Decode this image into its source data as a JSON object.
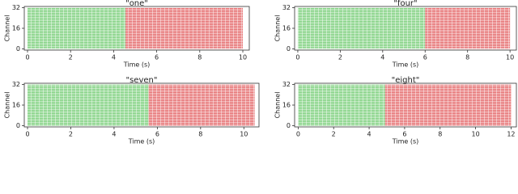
{
  "chart_data": [
    {
      "type": "raster",
      "title": "\"one\"",
      "xlabel": "Time (s)",
      "ylabel": "Channel",
      "xlim": [
        -0.15,
        10.3
      ],
      "xticks": [
        0,
        2,
        4,
        6,
        8,
        10
      ],
      "ylim": [
        -1,
        33
      ],
      "yticks": [
        0,
        16,
        32
      ],
      "series": [
        {
          "color": "#7ccf7c",
          "start": 0,
          "end": 4.55
        },
        {
          "color": "#e56a6c",
          "start": 4.55,
          "end": 10
        }
      ]
    },
    {
      "type": "raster",
      "title": "\"four\"",
      "xlabel": "Time (s)",
      "ylabel": "Channel",
      "xlim": [
        -0.15,
        10.3
      ],
      "xticks": [
        0,
        2,
        4,
        6,
        8,
        10
      ],
      "ylim": [
        -1,
        33
      ],
      "yticks": [
        0,
        16,
        32
      ],
      "series": [
        {
          "color": "#7ccf7c",
          "start": 0,
          "end": 6
        },
        {
          "color": "#e56a6c",
          "start": 6,
          "end": 10
        }
      ]
    },
    {
      "type": "raster",
      "title": "\"seven\"",
      "xlabel": "Time (s)",
      "ylabel": "Channel",
      "xlim": [
        -0.15,
        10.7
      ],
      "xticks": [
        0,
        2,
        4,
        6,
        8,
        10
      ],
      "ylim": [
        -1,
        33
      ],
      "yticks": [
        0,
        16,
        32
      ],
      "series": [
        {
          "color": "#7ccf7c",
          "start": 0,
          "end": 5.6
        },
        {
          "color": "#e56a6c",
          "start": 5.6,
          "end": 10.5
        }
      ]
    },
    {
      "type": "raster",
      "title": "\"eight\"",
      "xlabel": "Time (s)",
      "ylabel": "Channel",
      "xlim": [
        -0.2,
        12.3
      ],
      "xticks": [
        0,
        2,
        4,
        6,
        8,
        10,
        12
      ],
      "ylim": [
        -1,
        33
      ],
      "yticks": [
        0,
        16,
        32
      ],
      "series": [
        {
          "color": "#7ccf7c",
          "start": 0,
          "end": 4.9
        },
        {
          "color": "#e56a6c",
          "start": 4.9,
          "end": 12
        }
      ]
    }
  ]
}
